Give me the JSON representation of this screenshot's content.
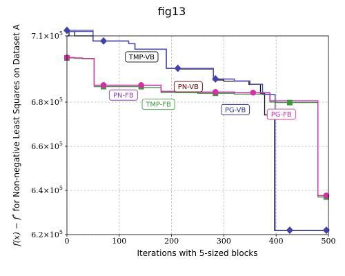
{
  "chart_data": {
    "type": "line",
    "title": "fig13",
    "xlabel": "Iterations with 5-sized blocks",
    "ylabel_math": "f(x) − f",
    "ylabel_sup": "*",
    "ylabel_text": " for Non-negative Least Squares on Dataset A",
    "xlim": [
      0,
      500
    ],
    "ylim": [
      620000,
      710000
    ],
    "x_ticks": [
      0,
      100,
      200,
      300,
      400,
      500
    ],
    "y_ticks": [
      {
        "value": 620000,
        "mantissa": "6.2×10",
        "exp": "5"
      },
      {
        "value": 640000,
        "mantissa": "6.4×10",
        "exp": "5"
      },
      {
        "value": 660000,
        "mantissa": "6.6×10",
        "exp": "5"
      },
      {
        "value": 680000,
        "mantissa": "6.8×10",
        "exp": "5"
      },
      {
        "value": 710000,
        "mantissa": "7.1×10",
        "exp": "5"
      }
    ],
    "grid": true,
    "series": [
      {
        "name": "TMP-VB",
        "color": "#111111",
        "marker": "none",
        "points": [
          [
            0,
            710000
          ],
          [
            4,
            710000
          ],
          [
            4,
            712000
          ],
          [
            15,
            712000
          ],
          [
            15,
            710000
          ],
          [
            50,
            710000
          ],
          [
            50,
            707700
          ],
          [
            118,
            707700
          ],
          [
            118,
            706500
          ],
          [
            130,
            706500
          ],
          [
            130,
            704000
          ],
          [
            190,
            704000
          ],
          [
            190,
            695300
          ],
          [
            212,
            695300
          ],
          [
            212,
            695000
          ],
          [
            280,
            695000
          ],
          [
            280,
            690000
          ],
          [
            300,
            690000
          ],
          [
            300,
            689500
          ],
          [
            348,
            689500
          ],
          [
            348,
            688000
          ],
          [
            370,
            688000
          ],
          [
            370,
            684000
          ],
          [
            376,
            684000
          ],
          [
            376,
            684000
          ],
          [
            378,
            684000
          ],
          [
            378,
            674200
          ],
          [
            397,
            674200
          ],
          [
            397,
            621800
          ],
          [
            500,
            621800
          ]
        ]
      },
      {
        "name": "PN-VB",
        "color": "#4040b0",
        "marker": "diamond",
        "marker_x": [
          0,
          70,
          212,
          284,
          426,
          496
        ],
        "points": [
          [
            0,
            712500
          ],
          [
            50,
            712500
          ],
          [
            50,
            707700
          ],
          [
            118,
            707700
          ],
          [
            118,
            706500
          ],
          [
            130,
            706500
          ],
          [
            130,
            704000
          ],
          [
            190,
            704000
          ],
          [
            190,
            695300
          ],
          [
            280,
            695300
          ],
          [
            280,
            690500
          ],
          [
            320,
            690500
          ],
          [
            320,
            689600
          ],
          [
            350,
            689600
          ],
          [
            350,
            688100
          ],
          [
            374,
            688100
          ],
          [
            374,
            683500
          ],
          [
            398,
            683500
          ],
          [
            398,
            622000
          ],
          [
            500,
            622000
          ]
        ]
      },
      {
        "name": "TMP-FB",
        "color": "#3a9a3a",
        "marker": "square",
        "marker_x": [
          0,
          70,
          142,
          284,
          426,
          496
        ],
        "points": [
          [
            0,
            700000
          ],
          [
            15,
            700000
          ],
          [
            15,
            699800
          ],
          [
            30,
            699800
          ],
          [
            30,
            699600
          ],
          [
            52,
            699600
          ],
          [
            52,
            687000
          ],
          [
            145,
            687000
          ],
          [
            145,
            686600
          ],
          [
            180,
            686600
          ],
          [
            180,
            684300
          ],
          [
            250,
            684300
          ],
          [
            250,
            684000
          ],
          [
            320,
            684000
          ],
          [
            320,
            683600
          ],
          [
            388,
            683600
          ],
          [
            388,
            680000
          ],
          [
            400,
            680000
          ],
          [
            400,
            679800
          ],
          [
            480,
            679800
          ],
          [
            480,
            637000
          ],
          [
            500,
            637000
          ]
        ]
      },
      {
        "name": "PN-FB",
        "color": "#8d3fb5",
        "marker": "none",
        "points": [
          [
            0,
            700200
          ],
          [
            15,
            700200
          ],
          [
            15,
            700000
          ],
          [
            30,
            700000
          ],
          [
            30,
            699800
          ],
          [
            52,
            699800
          ],
          [
            52,
            687600
          ],
          [
            180,
            687600
          ],
          [
            180,
            684800
          ],
          [
            250,
            684800
          ],
          [
            250,
            684500
          ],
          [
            320,
            684500
          ],
          [
            320,
            684200
          ],
          [
            388,
            684200
          ],
          [
            388,
            680500
          ],
          [
            480,
            680500
          ],
          [
            480,
            637600
          ],
          [
            500,
            637600
          ]
        ]
      },
      {
        "name": "PG-FB",
        "color": "#d62fa6",
        "marker": "circle",
        "marker_x": [
          0,
          70,
          142,
          284,
          356,
          496
        ],
        "points": [
          [
            0,
            700200
          ],
          [
            15,
            700200
          ],
          [
            15,
            700000
          ],
          [
            30,
            700000
          ],
          [
            30,
            699800
          ],
          [
            52,
            699800
          ],
          [
            52,
            687700
          ],
          [
            180,
            687700
          ],
          [
            180,
            684900
          ],
          [
            250,
            684900
          ],
          [
            250,
            684600
          ],
          [
            320,
            684600
          ],
          [
            320,
            684300
          ],
          [
            388,
            684300
          ],
          [
            388,
            680600
          ],
          [
            480,
            680600
          ],
          [
            480,
            637700
          ],
          [
            500,
            637700
          ]
        ]
      },
      {
        "name": "PG-VB",
        "color": "#5050c0",
        "marker": "none",
        "points": [
          [
            0,
            712000
          ],
          [
            50,
            712000
          ],
          [
            50,
            707600
          ],
          [
            118,
            707600
          ],
          [
            118,
            706400
          ],
          [
            130,
            706400
          ],
          [
            130,
            703900
          ],
          [
            190,
            703900
          ],
          [
            190,
            695200
          ],
          [
            280,
            695200
          ],
          [
            280,
            690400
          ],
          [
            320,
            690400
          ],
          [
            320,
            689500
          ],
          [
            350,
            689500
          ],
          [
            350,
            688000
          ],
          [
            374,
            688000
          ],
          [
            374,
            683400
          ],
          [
            398,
            683400
          ],
          [
            398,
            621900
          ],
          [
            500,
            621900
          ]
        ]
      }
    ],
    "annotations": [
      {
        "text": "TMP-VB",
        "x": 143,
        "y": 700500,
        "color": "#000000",
        "bg": "#ffffff",
        "border": "#000000"
      },
      {
        "text": "PN-VB",
        "x": 232,
        "y": 687000,
        "color": "#6b0000",
        "bg": "#ffffff",
        "border": "#6b0000"
      },
      {
        "text": "PN-FB",
        "x": 108,
        "y": 683200,
        "color": "#8d3fb5",
        "bg": "#ffffff",
        "border": "#8d3fb5"
      },
      {
        "text": "TMP-FB",
        "x": 175,
        "y": 679000,
        "color": "#3a9a3a",
        "bg": "#ffffff",
        "border": "#3a9a3a"
      },
      {
        "text": "PG-VB",
        "x": 322,
        "y": 676600,
        "color": "#3030a0",
        "bg": "#ffffff",
        "border": "#3030a0"
      },
      {
        "text": "PG-FB",
        "x": 410,
        "y": 674500,
        "color": "#d62fa6",
        "bg": "#ffffff",
        "border": "#d62fa6"
      }
    ]
  }
}
